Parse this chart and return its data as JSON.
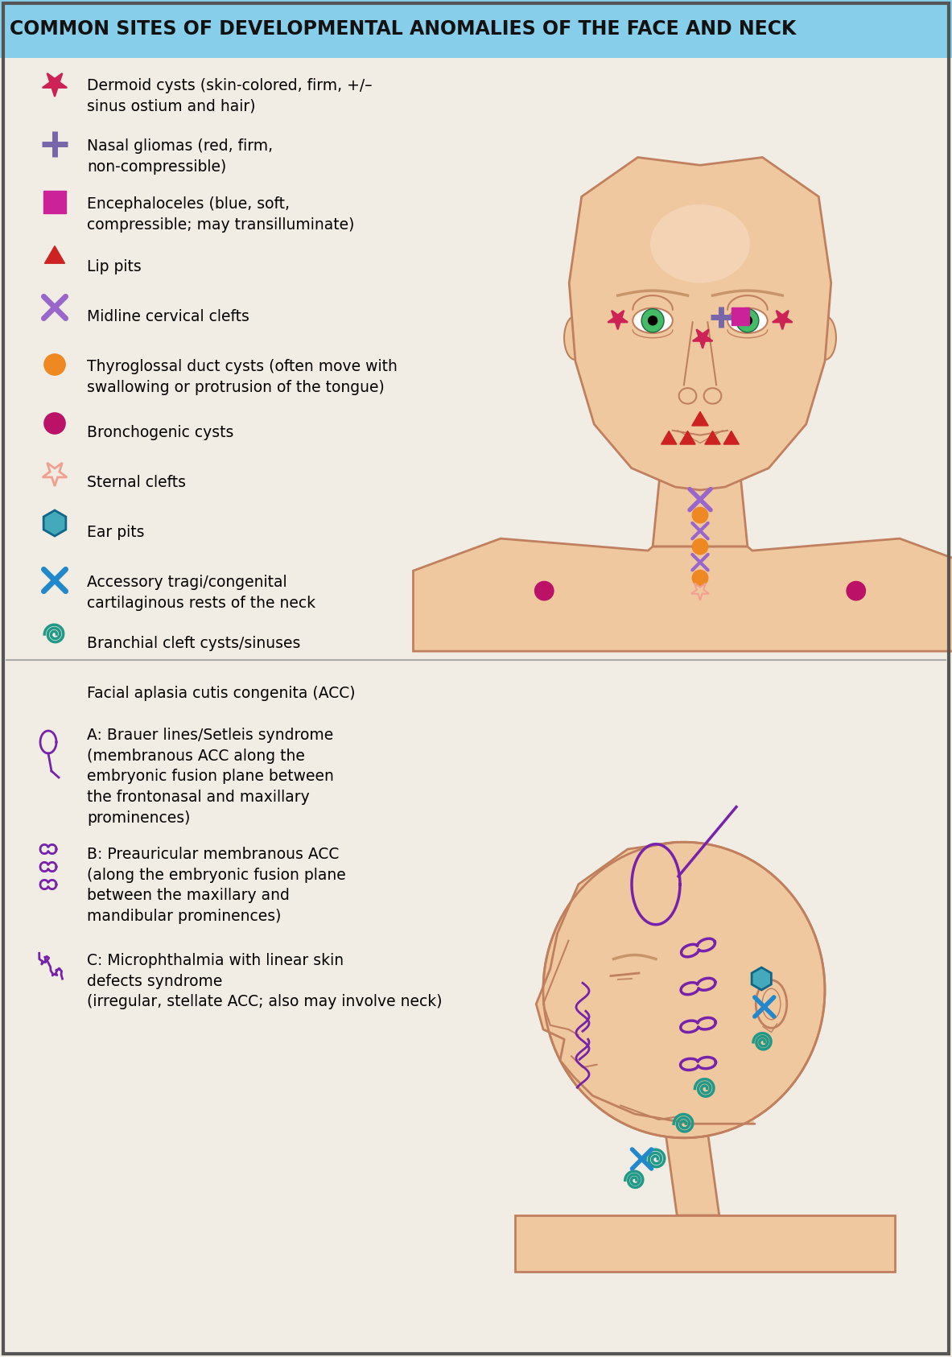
{
  "title": "COMMON SITES OF DEVELOPMENTAL ANOMALIES OF THE FACE AND NECK",
  "title_bg": "#87CEEB",
  "body_bg": "#F2EDE4",
  "title_color": "#111111",
  "skin_color": "#F0C8A0",
  "skin_shadow": "#DBA882",
  "skin_outline": "#C08060",
  "eye_green": "#44BB66",
  "eye_dark": "#226644",
  "brow_color": "#C8956A",
  "purple_acc": "#7722AA",
  "teal_spiral": "#229988",
  "blue_x": "#2288CC",
  "teal_hex": "#44AABB",
  "legend_items": [
    {
      "marker": "star_filled",
      "color": "#CC2255",
      "label": "Dermoid cysts (skin-colored, firm, +/–\nsinus ostium and hair)"
    },
    {
      "marker": "plus",
      "color": "#7766AA",
      "label": "Nasal gliomas (red, firm,\nnon-compressible)"
    },
    {
      "marker": "square",
      "color": "#CC2299",
      "label": "Encephaloceles (blue, soft,\ncompressible; may transilluminate)"
    },
    {
      "marker": "triangle",
      "color": "#CC2222",
      "label": "Lip pits"
    },
    {
      "marker": "x_mark",
      "color": "#9966CC",
      "label": "Midline cervical clefts"
    },
    {
      "marker": "circle",
      "color": "#EE8822",
      "label": "Thyroglossal duct cysts (often move with\nswallowing or protrusion of the tongue)"
    },
    {
      "marker": "circle",
      "color": "#BB1166",
      "label": "Bronchogenic cysts"
    },
    {
      "marker": "star_open",
      "color": "#F0A090",
      "label": "Sternal clefts"
    },
    {
      "marker": "hexagon",
      "color": "#44AABB",
      "label": "Ear pits"
    },
    {
      "marker": "x_blue",
      "color": "#2288CC",
      "label": "Accessory tragi/congenital\ncartilaginous rests of the neck"
    },
    {
      "marker": "spiral",
      "color": "#229988",
      "label": "Branchial cleft cysts/sinuses"
    },
    {
      "marker": "none",
      "color": "#000000",
      "label": "Facial aplasia cutis congenita (ACC)"
    },
    {
      "marker": "squiggle_a",
      "color": "#7722AA",
      "label": "A: Brauer lines/Setleis syndrome\n(membranous ACC along the\nembryonic fusion plane between\nthe frontonasal and maxillary\nprominences)"
    },
    {
      "marker": "squiggle_b",
      "color": "#7722AA",
      "label": "B: Preauricular membranous ACC\n(along the embryonic fusion plane\nbetween the maxillary and\nmandibular prominences)"
    },
    {
      "marker": "squiggle_c",
      "color": "#7722AA",
      "label": "C: Microphthalmia with linear skin\ndefects syndrome\n(irregular, stellate ACC; also may involve neck)"
    }
  ]
}
